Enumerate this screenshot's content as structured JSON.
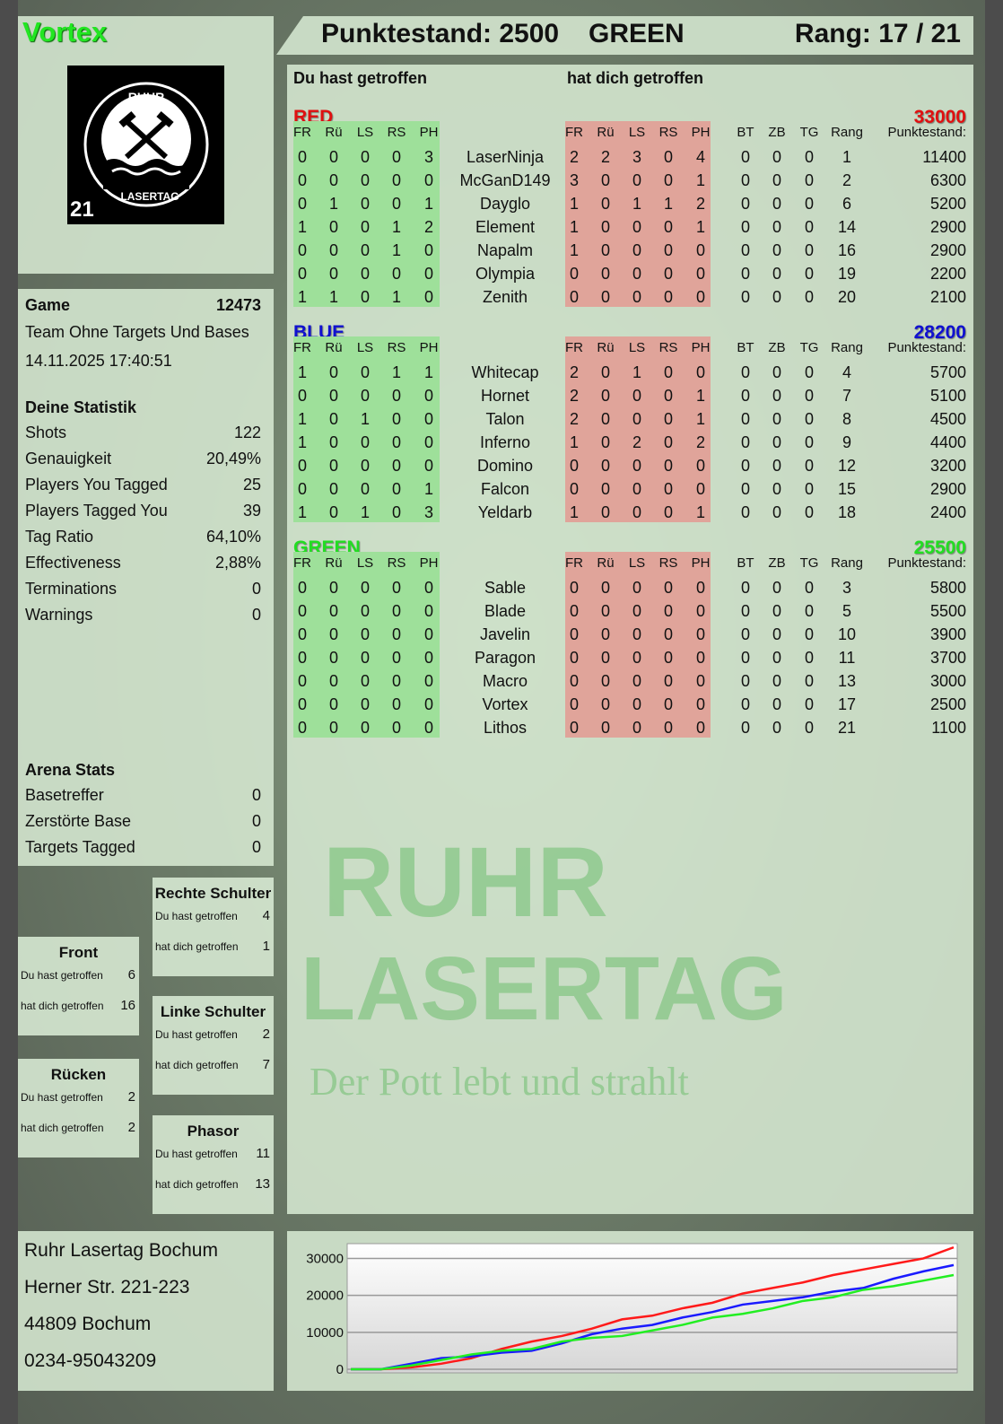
{
  "player": {
    "name": "Vortex",
    "score_label": "Punktestand: 2500",
    "team": "GREEN",
    "rank_label": "Rang: 17 / 21",
    "logo_number": "21",
    "logo_text": "RUHR LASERTAG"
  },
  "colors": {
    "name": "#22e622",
    "red": "#e01010",
    "blue": "#1010d0",
    "green": "#22dd22",
    "hit_block": "#9ee09a",
    "hitby_block": "#e0a49a"
  },
  "game": {
    "label": "Game",
    "id": "12473",
    "mode": "Team Ohne Targets Und Bases",
    "datetime": "14.11.2025 17:40:51"
  },
  "stats": {
    "title": "Deine Statistik",
    "rows": [
      {
        "label": "Shots",
        "value": "122"
      },
      {
        "label": "Genauigkeit",
        "value": "20,49%"
      },
      {
        "label": "Players You Tagged",
        "value": "25"
      },
      {
        "label": "Players Tagged You",
        "value": "39"
      },
      {
        "label": "Tag Ratio",
        "value": "64,10%"
      },
      {
        "label": "Effectiveness",
        "value": "2,88%"
      },
      {
        "label": "Terminations",
        "value": "0"
      },
      {
        "label": "Warnings",
        "value": "0"
      }
    ]
  },
  "arena": {
    "title": "Arena Stats",
    "rows": [
      {
        "label": "Basetreffer",
        "value": "0"
      },
      {
        "label": "Zerstörte Base",
        "value": "0"
      },
      {
        "label": "Targets Tagged",
        "value": "0"
      }
    ]
  },
  "zones": [
    {
      "title": "Rechte Schulter",
      "hit_label": "Du hast getroffen",
      "hit": "4",
      "hitby_label": "hat dich getroffen",
      "hitby": "1"
    },
    {
      "title": "Front",
      "hit_label": "Du hast getroffen",
      "hit": "6",
      "hitby_label": "hat dich getroffen",
      "hitby": "16"
    },
    {
      "title": "Linke Schulter",
      "hit_label": "Du hast getroffen",
      "hit": "2",
      "hitby_label": "hat dich getroffen",
      "hitby": "7"
    },
    {
      "title": "Rücken",
      "hit_label": "Du hast getroffen",
      "hit": "2",
      "hitby_label": "hat dich getroffen",
      "hitby": "2"
    },
    {
      "title": "Phasor",
      "hit_label": "Du hast getroffen",
      "hit": "11",
      "hitby_label": "hat dich getroffen",
      "hitby": "13"
    }
  ],
  "address": [
    "Ruhr Lasertag Bochum",
    "Herner Str. 221-223",
    "44809 Bochum",
    "0234-95043209"
  ],
  "table": {
    "hit_title": "Du hast getroffen",
    "hitby_title": "hat dich getroffen",
    "zone_headers": [
      "FR",
      "Rü",
      "LS",
      "RS",
      "PH"
    ],
    "extra_headers": [
      "BT",
      "ZB",
      "TG",
      "Rang"
    ],
    "score_header": "Punktestand:",
    "teams": [
      {
        "name": "RED",
        "color": "#e01010",
        "score": "33000",
        "players": [
          {
            "hit": [
              "0",
              "0",
              "0",
              "0",
              "3"
            ],
            "name": "LaserNinja",
            "hitby": [
              "2",
              "2",
              "3",
              "0",
              "4"
            ],
            "extra": [
              "0",
              "0",
              "0",
              "1"
            ],
            "score": "11400"
          },
          {
            "hit": [
              "0",
              "0",
              "0",
              "0",
              "0"
            ],
            "name": "McGanD149",
            "hitby": [
              "3",
              "0",
              "0",
              "0",
              "1"
            ],
            "extra": [
              "0",
              "0",
              "0",
              "2"
            ],
            "score": "6300"
          },
          {
            "hit": [
              "0",
              "1",
              "0",
              "0",
              "1"
            ],
            "name": "Dayglo",
            "hitby": [
              "1",
              "0",
              "1",
              "1",
              "2"
            ],
            "extra": [
              "0",
              "0",
              "0",
              "6"
            ],
            "score": "5200"
          },
          {
            "hit": [
              "1",
              "0",
              "0",
              "1",
              "2"
            ],
            "name": "Element",
            "hitby": [
              "1",
              "0",
              "0",
              "0",
              "1"
            ],
            "extra": [
              "0",
              "0",
              "0",
              "14"
            ],
            "score": "2900"
          },
          {
            "hit": [
              "0",
              "0",
              "0",
              "1",
              "0"
            ],
            "name": "Napalm",
            "hitby": [
              "1",
              "0",
              "0",
              "0",
              "0"
            ],
            "extra": [
              "0",
              "0",
              "0",
              "16"
            ],
            "score": "2900"
          },
          {
            "hit": [
              "0",
              "0",
              "0",
              "0",
              "0"
            ],
            "name": "Olympia",
            "hitby": [
              "0",
              "0",
              "0",
              "0",
              "0"
            ],
            "extra": [
              "0",
              "0",
              "0",
              "19"
            ],
            "score": "2200"
          },
          {
            "hit": [
              "1",
              "1",
              "0",
              "1",
              "0"
            ],
            "name": "Zenith",
            "hitby": [
              "0",
              "0",
              "0",
              "0",
              "0"
            ],
            "extra": [
              "0",
              "0",
              "0",
              "20"
            ],
            "score": "2100"
          }
        ]
      },
      {
        "name": "BLUE",
        "color": "#1010d0",
        "score": "28200",
        "players": [
          {
            "hit": [
              "1",
              "0",
              "0",
              "1",
              "1"
            ],
            "name": "Whitecap",
            "hitby": [
              "2",
              "0",
              "1",
              "0",
              "0"
            ],
            "extra": [
              "0",
              "0",
              "0",
              "4"
            ],
            "score": "5700"
          },
          {
            "hit": [
              "0",
              "0",
              "0",
              "0",
              "0"
            ],
            "name": "Hornet",
            "hitby": [
              "2",
              "0",
              "0",
              "0",
              "1"
            ],
            "extra": [
              "0",
              "0",
              "0",
              "7"
            ],
            "score": "5100"
          },
          {
            "hit": [
              "1",
              "0",
              "1",
              "0",
              "0"
            ],
            "name": "Talon",
            "hitby": [
              "2",
              "0",
              "0",
              "0",
              "1"
            ],
            "extra": [
              "0",
              "0",
              "0",
              "8"
            ],
            "score": "4500"
          },
          {
            "hit": [
              "1",
              "0",
              "0",
              "0",
              "0"
            ],
            "name": "Inferno",
            "hitby": [
              "1",
              "0",
              "2",
              "0",
              "2"
            ],
            "extra": [
              "0",
              "0",
              "0",
              "9"
            ],
            "score": "4400"
          },
          {
            "hit": [
              "0",
              "0",
              "0",
              "0",
              "0"
            ],
            "name": "Domino",
            "hitby": [
              "0",
              "0",
              "0",
              "0",
              "0"
            ],
            "extra": [
              "0",
              "0",
              "0",
              "12"
            ],
            "score": "3200"
          },
          {
            "hit": [
              "0",
              "0",
              "0",
              "0",
              "1"
            ],
            "name": "Falcon",
            "hitby": [
              "0",
              "0",
              "0",
              "0",
              "0"
            ],
            "extra": [
              "0",
              "0",
              "0",
              "15"
            ],
            "score": "2900"
          },
          {
            "hit": [
              "1",
              "0",
              "1",
              "0",
              "3"
            ],
            "name": "Yeldarb",
            "hitby": [
              "1",
              "0",
              "0",
              "0",
              "1"
            ],
            "extra": [
              "0",
              "0",
              "0",
              "18"
            ],
            "score": "2400"
          }
        ]
      },
      {
        "name": "GREEN",
        "color": "#22dd22",
        "score": "25500",
        "players": [
          {
            "hit": [
              "0",
              "0",
              "0",
              "0",
              "0"
            ],
            "name": "Sable",
            "hitby": [
              "0",
              "0",
              "0",
              "0",
              "0"
            ],
            "extra": [
              "0",
              "0",
              "0",
              "3"
            ],
            "score": "5800"
          },
          {
            "hit": [
              "0",
              "0",
              "0",
              "0",
              "0"
            ],
            "name": "Blade",
            "hitby": [
              "0",
              "0",
              "0",
              "0",
              "0"
            ],
            "extra": [
              "0",
              "0",
              "0",
              "5"
            ],
            "score": "5500"
          },
          {
            "hit": [
              "0",
              "0",
              "0",
              "0",
              "0"
            ],
            "name": "Javelin",
            "hitby": [
              "0",
              "0",
              "0",
              "0",
              "0"
            ],
            "extra": [
              "0",
              "0",
              "0",
              "10"
            ],
            "score": "3900"
          },
          {
            "hit": [
              "0",
              "0",
              "0",
              "0",
              "0"
            ],
            "name": "Paragon",
            "hitby": [
              "0",
              "0",
              "0",
              "0",
              "0"
            ],
            "extra": [
              "0",
              "0",
              "0",
              "11"
            ],
            "score": "3700"
          },
          {
            "hit": [
              "0",
              "0",
              "0",
              "0",
              "0"
            ],
            "name": "Macro",
            "hitby": [
              "0",
              "0",
              "0",
              "0",
              "0"
            ],
            "extra": [
              "0",
              "0",
              "0",
              "13"
            ],
            "score": "3000"
          },
          {
            "hit": [
              "0",
              "0",
              "0",
              "0",
              "0"
            ],
            "name": "Vortex",
            "hitby": [
              "0",
              "0",
              "0",
              "0",
              "0"
            ],
            "extra": [
              "0",
              "0",
              "0",
              "17"
            ],
            "score": "2500"
          },
          {
            "hit": [
              "0",
              "0",
              "0",
              "0",
              "0"
            ],
            "name": "Lithos",
            "hitby": [
              "0",
              "0",
              "0",
              "0",
              "0"
            ],
            "extra": [
              "0",
              "0",
              "0",
              "21"
            ],
            "score": "1100"
          }
        ]
      }
    ]
  },
  "watermark": {
    "line1": "RUHR",
    "line2": "LASERTAG",
    "slogan": "Der Pott lebt und strahlt"
  },
  "chart_data": {
    "type": "line",
    "ylim": [
      0,
      34000
    ],
    "yticks": [
      "0",
      "10000",
      "20000",
      "30000"
    ],
    "grid": true,
    "x": [
      0,
      1,
      2,
      3,
      4,
      5,
      6,
      7,
      8,
      9,
      10,
      11,
      12,
      13,
      14,
      15,
      16,
      17,
      18,
      19,
      20
    ],
    "series": [
      {
        "color": "#ff1a1a",
        "values": [
          0,
          0,
          500,
          1500,
          3000,
          5500,
          7500,
          9000,
          11000,
          13500,
          14500,
          16500,
          18000,
          20500,
          22000,
          23500,
          25500,
          27000,
          28500,
          30000,
          33000
        ]
      },
      {
        "color": "#1a1aff",
        "values": [
          0,
          0,
          1500,
          3000,
          3500,
          4500,
          5000,
          7000,
          9500,
          11000,
          12000,
          14000,
          15500,
          17500,
          18500,
          19500,
          21000,
          22000,
          24500,
          26500,
          28200
        ]
      },
      {
        "color": "#22ee22",
        "values": [
          0,
          0,
          1000,
          2500,
          4000,
          5000,
          5500,
          7500,
          8500,
          9000,
          10500,
          12000,
          14000,
          15000,
          16500,
          18500,
          19500,
          21500,
          22500,
          24000,
          25500
        ]
      }
    ]
  }
}
